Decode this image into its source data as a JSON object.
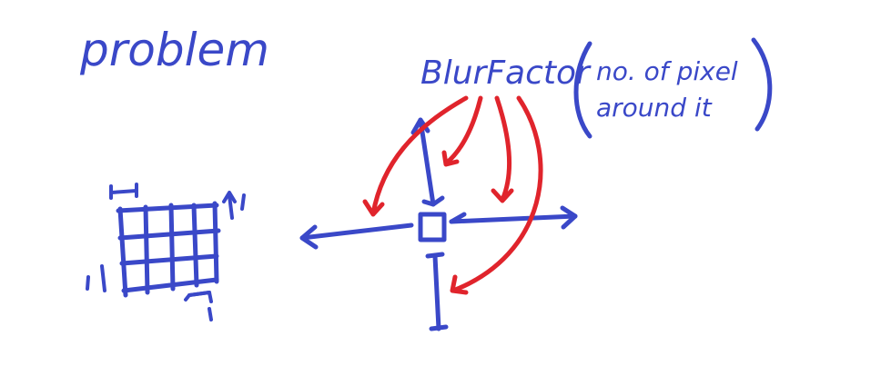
{
  "colors": {
    "blue": "#3a48c8",
    "red": "#e0242c",
    "background": "#ffffff"
  },
  "texts": {
    "title": "problem",
    "blur_label": "BlurFactor",
    "paren_line1": "no. of pixel",
    "paren_line2": "around it"
  }
}
